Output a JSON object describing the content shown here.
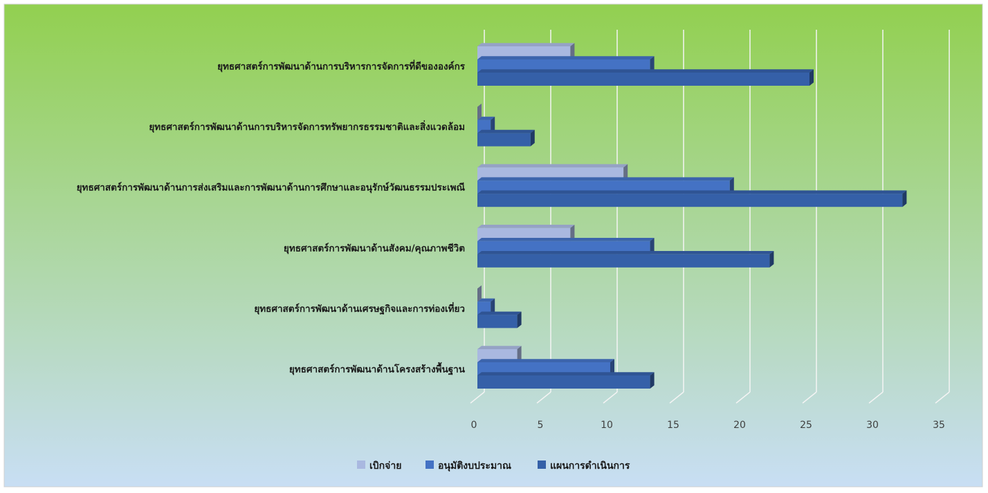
{
  "chart_data": {
    "type": "bar",
    "orientation": "horizontal",
    "style": "3d-clustered",
    "categories": [
      "ยุทธศาสตร์การพัฒนาด้านการบริหารการจัดการที่ดีขององค์กร",
      "ยุทธศาสตร์การพัฒนาด้านการบริหารจัดการทรัพยากรธรรมชาติและสิ่งแวดล้อม",
      "ยุทธศาสตร์การพัฒนาด้านการส่งเสริมและการพัฒนาด้านการศึกษาและอนุรักษ์วัฒนธรรมประเพณี",
      "ยุทธศาสตร์การพัฒนาด้านสังคม/คุณภาพชีวิต",
      "ยุทธศาสตร์การพัฒนาด้านเศรษฐกิจและการท่องเที่ยว",
      "ยุทธศาสตร์การพัฒนาด้านโครงสร้างพื้นฐาน"
    ],
    "series": [
      {
        "name": "เบิกจ่าย",
        "color": "#a9b8e0",
        "values": [
          7,
          0,
          11,
          7,
          0,
          3
        ]
      },
      {
        "name": "อนุมัติงบประมาณ",
        "color": "#4472c4",
        "values": [
          13,
          1,
          19,
          13,
          1,
          10
        ]
      },
      {
        "name": "แผนการดำเนินการ",
        "color": "#3560a8",
        "values": [
          25,
          4,
          32,
          22,
          3,
          13
        ]
      }
    ],
    "x_ticks": [
      "0",
      "5",
      "10",
      "15",
      "20",
      "25",
      "30",
      "35"
    ],
    "xlim": [
      0,
      35
    ],
    "grid": true,
    "legend_position": "bottom",
    "background": [
      "#92d050",
      "#c8def4"
    ]
  }
}
